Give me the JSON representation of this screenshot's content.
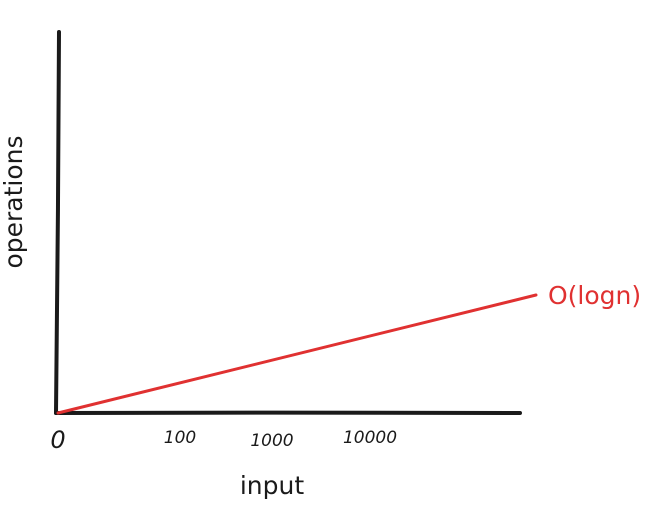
{
  "chart_data": {
    "type": "line",
    "title": "",
    "xlabel": "input",
    "ylabel": "operations",
    "x_origin_label": "0",
    "x_tick_labels": [
      "100",
      "1000",
      "10000"
    ],
    "grid": false,
    "series": [
      {
        "name": "O(logn)",
        "color": "#e03131",
        "points": [
          [
            0,
            0
          ],
          [
            1,
            1
          ]
        ]
      }
    ],
    "axis_color": "#1a1a1a"
  }
}
